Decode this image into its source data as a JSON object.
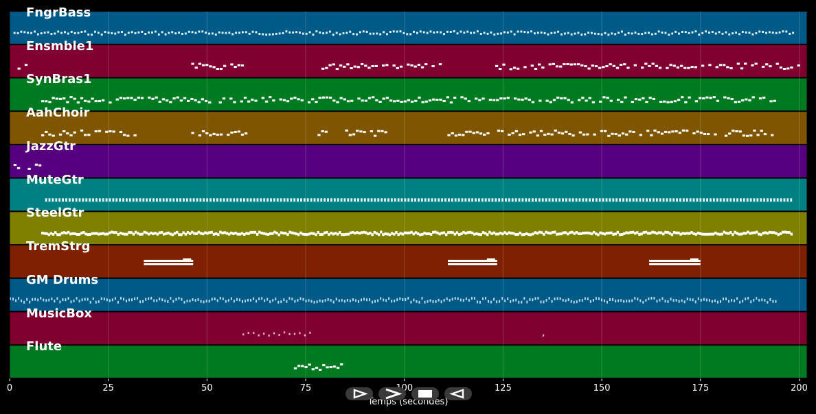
{
  "chart_data": {
    "type": "piano-roll",
    "title": "",
    "xlabel": "Temps (secondes)",
    "ylabel": "",
    "xlim": [
      0,
      202
    ],
    "xticks": [
      0,
      25,
      50,
      75,
      100,
      125,
      150,
      175,
      200
    ],
    "grid": true,
    "tracks": [
      {
        "name": "FngrBass",
        "color": "#005a87",
        "notes": "dense",
        "pattern": {
          "type": "dense",
          "start": 1,
          "end": 199,
          "step": 0.9,
          "amp": 0.25
        }
      },
      {
        "name": "Ensmble1",
        "color": "#800030",
        "notes": "phrases",
        "segments": [
          [
            2,
            4
          ],
          [
            46,
            59
          ],
          [
            79,
            110
          ],
          [
            123,
            200
          ]
        ]
      },
      {
        "name": "SynBras1",
        "color": "#007a20",
        "notes": "phrases",
        "segments": [
          [
            8,
            194
          ]
        ]
      },
      {
        "name": "AahChoir",
        "color": "#7f5500",
        "notes": "phrases",
        "segments": [
          [
            8,
            32
          ],
          [
            46,
            60
          ],
          [
            78,
            80
          ],
          [
            85,
            95
          ],
          [
            110,
            194
          ]
        ]
      },
      {
        "name": "JazzGtr",
        "color": "#560080",
        "notes": "phrases",
        "segments": [
          [
            1,
            8
          ]
        ]
      },
      {
        "name": "MuteGtr",
        "color": "#008080",
        "notes": "dense",
        "segments": [
          [
            9,
            198
          ]
        ]
      },
      {
        "name": "SteelGtr",
        "color": "#7f7f00",
        "notes": "dense",
        "segments": [
          [
            8,
            198
          ]
        ]
      },
      {
        "name": "TremStrg",
        "color": "#7f2000",
        "notes": "sustained",
        "segments": [
          [
            34,
            46.5
          ],
          [
            111,
            123.5
          ],
          [
            162,
            175
          ]
        ]
      },
      {
        "name": "GM Drums",
        "color": "#005a87",
        "notes": "dense",
        "segments": [
          [
            0,
            194
          ]
        ]
      },
      {
        "name": "MusicBox",
        "color": "#800030",
        "notes": "sparse",
        "segments": [
          [
            59,
            77
          ],
          [
            135,
            136
          ]
        ]
      },
      {
        "name": "Flute",
        "color": "#007a20",
        "notes": "phrase",
        "segments": [
          [
            72,
            84
          ]
        ]
      }
    ]
  },
  "controls": [
    {
      "name": "play",
      "icon": "play-outline-icon"
    },
    {
      "name": "forward",
      "icon": "chevron-right-icon"
    },
    {
      "name": "stop",
      "icon": "stop-square-icon"
    },
    {
      "name": "rewind",
      "icon": "play-left-outline-icon"
    }
  ]
}
